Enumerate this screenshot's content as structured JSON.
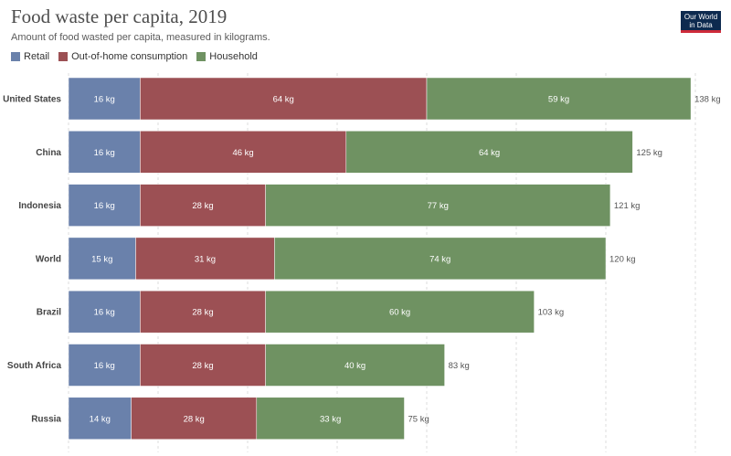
{
  "title": "Food waste per capita, 2019",
  "subtitle": "Amount of food wasted per capita, measured in kilograms.",
  "logo": {
    "line1": "Our World",
    "line2": "in Data"
  },
  "colors": {
    "retail": "#6a81ab",
    "outofhome": "#9c5054",
    "household": "#6f9262",
    "grid": "#dddddd"
  },
  "chart_data": {
    "type": "bar",
    "orientation": "horizontal",
    "stacked": true,
    "unit": "kg",
    "categories": [
      "United States",
      "China",
      "Indonesia",
      "World",
      "Brazil",
      "South Africa",
      "Russia"
    ],
    "series": [
      {
        "name": "Retail",
        "values": [
          16,
          16,
          16,
          15,
          16,
          16,
          14
        ]
      },
      {
        "name": "Out-of-home consumption",
        "values": [
          64,
          46,
          28,
          31,
          28,
          28,
          28
        ]
      },
      {
        "name": "Household",
        "values": [
          59,
          64,
          77,
          74,
          60,
          40,
          33
        ]
      }
    ],
    "totals": [
      138,
      125,
      121,
      120,
      103,
      83,
      75
    ],
    "xlim": [
      0,
      140
    ],
    "grid": true,
    "legend": "top-left"
  }
}
